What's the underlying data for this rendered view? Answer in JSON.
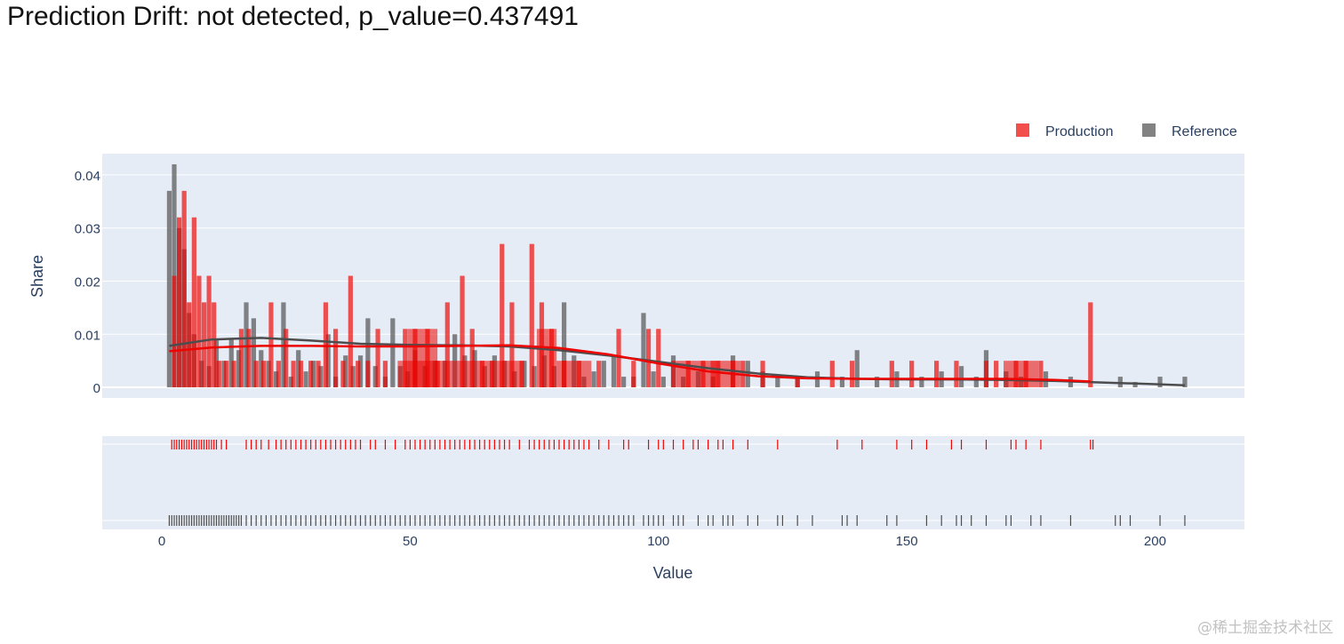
{
  "page": {
    "title": "Prediction Drift: not detected, p_value=0.437491",
    "watermark": "@稀土掘金技术社区"
  },
  "colors": {
    "production": "#ed0400",
    "reference": "#4d4d4d",
    "plot_bg": "#e5ecf6",
    "grid": "#ffffff",
    "axis_text": "#2a3f5f"
  },
  "chart_data": {
    "type": "bar",
    "subtype": "overlaid histogram with density curves and rug plot",
    "title": "Prediction Drift: not detected, p_value=0.437491",
    "xlabel": "Value",
    "ylabel": "Share",
    "xlim": [
      -12,
      218
    ],
    "ylim": [
      -0.002,
      0.044
    ],
    "x_ticks": [
      0,
      50,
      100,
      150,
      200
    ],
    "y_ticks": [
      0,
      0.01,
      0.02,
      0.03,
      0.04
    ],
    "y_tick_labels": [
      "0",
      "0.01",
      "0.02",
      "0.03",
      "0.04"
    ],
    "grid": true,
    "legend": {
      "position": "top-right",
      "entries": [
        "Production",
        "Reference"
      ]
    },
    "series": [
      {
        "name": "Reference",
        "bars": [
          [
            1.5,
            0.037
          ],
          [
            2.5,
            0.042
          ],
          [
            3.5,
            0.03
          ],
          [
            4.5,
            0.026
          ],
          [
            5.5,
            0.014
          ],
          [
            6.5,
            0.01
          ],
          [
            8,
            0.005
          ],
          [
            9.5,
            0.004
          ],
          [
            11,
            0.009
          ],
          [
            12.5,
            0.005
          ],
          [
            14,
            0.009
          ],
          [
            15.5,
            0.007
          ],
          [
            17,
            0.016
          ],
          [
            18.5,
            0.013
          ],
          [
            20,
            0.007
          ],
          [
            21.5,
            0.005
          ],
          [
            23,
            0.003
          ],
          [
            24.5,
            0.016
          ],
          [
            26,
            0.002
          ],
          [
            27.5,
            0.007
          ],
          [
            29,
            0.003
          ],
          [
            30.5,
            0.005
          ],
          [
            32,
            0.004
          ],
          [
            33.5,
            0.01
          ],
          [
            35,
            0.002
          ],
          [
            37,
            0.006
          ],
          [
            38.5,
            0.004
          ],
          [
            40,
            0.006
          ],
          [
            41.5,
            0.013
          ],
          [
            43,
            0.004
          ],
          [
            45,
            0.002
          ],
          [
            46.5,
            0.013
          ],
          [
            48,
            0.004
          ],
          [
            49.5,
            0.003
          ],
          [
            51,
            0.007
          ],
          [
            53,
            0.004
          ],
          [
            55,
            0.005
          ],
          [
            57,
            0.005
          ],
          [
            59,
            0.01
          ],
          [
            61,
            0.006
          ],
          [
            63,
            0.007
          ],
          [
            65,
            0.004
          ],
          [
            67,
            0.006
          ],
          [
            69,
            0.005
          ],
          [
            71,
            0.003
          ],
          [
            73,
            0.005
          ],
          [
            75,
            0.004
          ],
          [
            77,
            0.006
          ],
          [
            79,
            0.004
          ],
          [
            81,
            0.016
          ],
          [
            83,
            0.006
          ],
          [
            85,
            0.002
          ],
          [
            87,
            0.003
          ],
          [
            89,
            0.005
          ],
          [
            91,
            0.006
          ],
          [
            93,
            0.002
          ],
          [
            95,
            0.002
          ],
          [
            97,
            0.014
          ],
          [
            99,
            0.003
          ],
          [
            101,
            0.002
          ],
          [
            103,
            0.006
          ],
          [
            105,
            0.002
          ],
          [
            108,
            0.003
          ],
          [
            111,
            0.002
          ],
          [
            115,
            0.006
          ],
          [
            118,
            0.005
          ],
          [
            121,
            0.003
          ],
          [
            124,
            0.002
          ],
          [
            128,
            0.002
          ],
          [
            132,
            0.003
          ],
          [
            137,
            0.002
          ],
          [
            140,
            0.007
          ],
          [
            144,
            0.002
          ],
          [
            148,
            0.003
          ],
          [
            153,
            0.002
          ],
          [
            157,
            0.003
          ],
          [
            161,
            0.004
          ],
          [
            164,
            0.002
          ],
          [
            166,
            0.007
          ],
          [
            170,
            0.003
          ],
          [
            173,
            0.002
          ],
          [
            178,
            0.003
          ],
          [
            183,
            0.002
          ],
          [
            193,
            0.002
          ],
          [
            196,
            0.001
          ],
          [
            201,
            0.002
          ],
          [
            206,
            0.002
          ]
        ],
        "density": [
          [
            1.5,
            0.0078
          ],
          [
            10,
            0.009
          ],
          [
            20,
            0.0093
          ],
          [
            30,
            0.0088
          ],
          [
            40,
            0.0082
          ],
          [
            50,
            0.008
          ],
          [
            60,
            0.0079
          ],
          [
            70,
            0.0077
          ],
          [
            80,
            0.007
          ],
          [
            90,
            0.006
          ],
          [
            100,
            0.0048
          ],
          [
            110,
            0.0036
          ],
          [
            120,
            0.0026
          ],
          [
            130,
            0.0019
          ],
          [
            140,
            0.0016
          ],
          [
            150,
            0.0015
          ],
          [
            160,
            0.0015
          ],
          [
            170,
            0.0014
          ],
          [
            180,
            0.0012
          ],
          [
            190,
            0.0009
          ],
          [
            200,
            0.0006
          ],
          [
            206,
            0.0004
          ]
        ],
        "rug": [
          1.5,
          2,
          2.5,
          3,
          3.5,
          4,
          4.5,
          5,
          5.5,
          6,
          6.5,
          7,
          7.5,
          8,
          8.5,
          9,
          9.5,
          10,
          10.5,
          11,
          11.5,
          12,
          12.5,
          13,
          13.5,
          14,
          14.5,
          15,
          15.5,
          16,
          17,
          18,
          19,
          20,
          21,
          22,
          23,
          24,
          25,
          26,
          27,
          28,
          29,
          30,
          31,
          32,
          33,
          34,
          35,
          36,
          37,
          38,
          39,
          40,
          41,
          42,
          43,
          44,
          45,
          46,
          47,
          48,
          49,
          50,
          51,
          52,
          53,
          54,
          55,
          56,
          57,
          58,
          59,
          60,
          61,
          62,
          63,
          64,
          65,
          66,
          67,
          68,
          69,
          70,
          71,
          72,
          73,
          74,
          75,
          76,
          77,
          78,
          79,
          80,
          81,
          82,
          83,
          84,
          85,
          86,
          87,
          88,
          89,
          90,
          91,
          92,
          93,
          94,
          95,
          97,
          98,
          99,
          100,
          101,
          103,
          104,
          105,
          108,
          110,
          111,
          113,
          114,
          115,
          118,
          120,
          124,
          125,
          128,
          131,
          137,
          138,
          140,
          146,
          148,
          154,
          157,
          160,
          161,
          163,
          166,
          170,
          171,
          175,
          177,
          183,
          192,
          193,
          195,
          201,
          206
        ]
      },
      {
        "name": "Production",
        "bars": [
          [
            2.5,
            0.021
          ],
          [
            3.5,
            0.032
          ],
          [
            4.5,
            0.037
          ],
          [
            5.5,
            0.016
          ],
          [
            6.5,
            0.032
          ],
          [
            7.5,
            0.021
          ],
          [
            8.5,
            0.016
          ],
          [
            9.5,
            0.021
          ],
          [
            10.5,
            0.016
          ],
          [
            11.5,
            0.005
          ],
          [
            13,
            0.005
          ],
          [
            14.5,
            0.005
          ],
          [
            16,
            0.011
          ],
          [
            17.5,
            0.011
          ],
          [
            19,
            0.005
          ],
          [
            20.5,
            0.005
          ],
          [
            22,
            0.016
          ],
          [
            23.5,
            0.005
          ],
          [
            25,
            0.011
          ],
          [
            26.5,
            0.005
          ],
          [
            28,
            0.005
          ],
          [
            30,
            0.005
          ],
          [
            31.5,
            0.005
          ],
          [
            33,
            0.016
          ],
          [
            35,
            0.011
          ],
          [
            36.5,
            0.005
          ],
          [
            38,
            0.021
          ],
          [
            39.5,
            0.005
          ],
          [
            41.5,
            0.005
          ],
          [
            43.5,
            0.011
          ],
          [
            45,
            0.005
          ],
          [
            49,
            0.011
          ],
          [
            51,
            0.011
          ],
          [
            53.5,
            0.011
          ],
          [
            55.5,
            0.005
          ],
          [
            57.5,
            0.016
          ],
          [
            60.5,
            0.021
          ],
          [
            62.5,
            0.011
          ],
          [
            64.5,
            0.005
          ],
          [
            66.5,
            0.005
          ],
          [
            68.5,
            0.027
          ],
          [
            70.5,
            0.016
          ],
          [
            72.5,
            0.005
          ],
          [
            74.5,
            0.027
          ],
          [
            76.5,
            0.016
          ],
          [
            78.5,
            0.011
          ],
          [
            81,
            0.005
          ],
          [
            84,
            0.005
          ],
          [
            88,
            0.005
          ],
          [
            92,
            0.011
          ],
          [
            95,
            0.005
          ],
          [
            98,
            0.011
          ],
          [
            100,
            0.011
          ],
          [
            103,
            0.005
          ],
          [
            106,
            0.005
          ],
          [
            109,
            0.005
          ],
          [
            112,
            0.005
          ],
          [
            115,
            0.005
          ],
          [
            117,
            0.005
          ],
          [
            121,
            0.005
          ],
          [
            128,
            0.002
          ],
          [
            135,
            0.005
          ],
          [
            139,
            0.005
          ],
          [
            147,
            0.005
          ],
          [
            151,
            0.005
          ],
          [
            156,
            0.005
          ],
          [
            160,
            0.005
          ],
          [
            166,
            0.005
          ],
          [
            168,
            0.005
          ],
          [
            172,
            0.005
          ],
          [
            174,
            0.005
          ],
          [
            177,
            0.005
          ],
          [
            187,
            0.016
          ]
        ],
        "wide_bars": [
          [
            47.5,
            57.5,
            0.005
          ],
          [
            49.5,
            55.5,
            0.011
          ],
          [
            57.5,
            63.5,
            0.005
          ],
          [
            63.5,
            72.5,
            0.005
          ],
          [
            75.5,
            79.5,
            0.011
          ],
          [
            79.5,
            86.5,
            0.005
          ],
          [
            103.5,
            111.5,
            0.005
          ],
          [
            110.5,
            116.5,
            0.005
          ],
          [
            169.5,
            176.5,
            0.005
          ]
        ],
        "density": [
          [
            1.5,
            0.0068
          ],
          [
            10,
            0.0075
          ],
          [
            20,
            0.0078
          ],
          [
            30,
            0.0078
          ],
          [
            40,
            0.0077
          ],
          [
            50,
            0.0077
          ],
          [
            60,
            0.0078
          ],
          [
            70,
            0.0079
          ],
          [
            80,
            0.0074
          ],
          [
            90,
            0.0062
          ],
          [
            100,
            0.0045
          ],
          [
            110,
            0.003
          ],
          [
            120,
            0.0021
          ],
          [
            130,
            0.0017
          ],
          [
            140,
            0.0016
          ],
          [
            150,
            0.0016
          ],
          [
            160,
            0.0016
          ],
          [
            170,
            0.0016
          ],
          [
            180,
            0.0014
          ],
          [
            187,
            0.0011
          ]
        ],
        "rug": [
          2,
          2.5,
          3,
          3.5,
          4,
          4.5,
          5,
          5.5,
          6,
          6.5,
          7,
          7.5,
          8,
          8.5,
          9,
          9.5,
          10,
          10.5,
          11,
          12,
          13,
          17,
          18,
          19,
          20,
          21.5,
          23,
          24,
          25,
          26,
          27,
          28,
          29,
          30,
          31,
          32,
          33,
          34,
          35,
          36,
          37,
          38,
          39,
          40,
          42,
          43,
          45,
          47,
          49,
          50,
          51,
          52,
          53,
          54,
          55,
          56,
          57,
          58,
          59,
          60,
          61,
          62,
          63,
          64,
          65,
          66,
          67,
          68,
          69,
          70,
          72,
          74,
          75,
          76,
          77,
          78,
          79,
          80,
          81,
          82,
          83,
          84,
          85,
          86,
          88,
          90,
          93,
          94,
          98,
          100,
          101,
          103,
          105,
          107,
          108,
          110,
          112,
          113,
          115,
          118,
          124,
          136,
          141,
          148,
          151,
          154,
          159,
          161,
          166,
          171,
          172,
          174,
          177,
          187,
          187.5
        ]
      }
    ]
  }
}
